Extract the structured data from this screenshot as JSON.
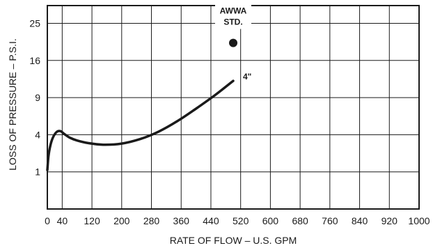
{
  "chart_data": {
    "type": "line",
    "title": "",
    "xlabel": "RATE OF FLOW – U.S. GPM",
    "ylabel": "LOSS OF PRESSURE – P.S.I.",
    "xlim": [
      0,
      1000
    ],
    "xticks": [
      0,
      40,
      120,
      200,
      280,
      360,
      440,
      520,
      600,
      680,
      760,
      840,
      920,
      1000
    ],
    "x_tick_labels": [
      "0",
      "40",
      "120",
      "200",
      "280",
      "360",
      "440",
      "520",
      "600",
      "680",
      "760",
      "840",
      "920",
      "1000"
    ],
    "y_scale": "sqrt",
    "ylim": [
      0,
      30
    ],
    "yticks": [
      1,
      4,
      9,
      16,
      25
    ],
    "y_tick_labels": [
      "1",
      "4",
      "9",
      "16",
      "25"
    ],
    "grid": true,
    "series": [
      {
        "name": "4\"",
        "x": [
          0,
          3,
          8,
          15,
          25,
          35,
          45,
          60,
          80,
          110,
          150,
          200,
          250,
          300,
          350,
          400,
          450,
          500
        ],
        "y": [
          1.1,
          2.0,
          2.9,
          3.7,
          4.3,
          4.4,
          4.1,
          3.7,
          3.4,
          3.15,
          3.0,
          3.1,
          3.55,
          4.35,
          5.6,
          7.3,
          9.35,
          11.9
        ]
      }
    ],
    "points": [
      {
        "label": "AWWA STD.",
        "label_lines": [
          "AWWA",
          "STD."
        ],
        "x": 500,
        "y": 20
      }
    ],
    "colors": {
      "line": "#1a1a1a",
      "grid": "#1a1a1a",
      "background": "#ffffff"
    }
  }
}
